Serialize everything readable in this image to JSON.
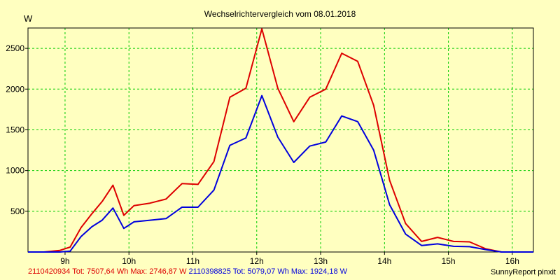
{
  "chart_data": {
    "type": "line",
    "title": "Wechselrichtervergleich vom 08.01.2018",
    "ylabel": "W",
    "xlabel": "",
    "x": [
      8.42,
      8.67,
      8.92,
      9.08,
      9.25,
      9.42,
      9.58,
      9.75,
      9.92,
      10.08,
      10.33,
      10.58,
      10.83,
      11.08,
      11.33,
      11.58,
      11.83,
      12.08,
      12.33,
      12.58,
      12.83,
      13.08,
      13.33,
      13.58,
      13.83,
      14.08,
      14.33,
      14.58,
      14.83,
      15.08,
      15.33,
      15.58,
      15.83,
      16.08,
      16.33
    ],
    "x_ticks": [
      9,
      10,
      11,
      12,
      13,
      14,
      15,
      16
    ],
    "x_tick_labels": [
      "9h",
      "10h",
      "11h",
      "12h",
      "13h",
      "14h",
      "15h",
      "16h"
    ],
    "xlim": [
      8.42,
      16.33
    ],
    "ylim": [
      0,
      2750
    ],
    "y_ticks": [
      500,
      1000,
      1500,
      2000,
      2500
    ],
    "grid": true,
    "series": [
      {
        "name": "2110420934",
        "color": "#dd0000",
        "values": [
          0,
          0,
          20,
          60,
          300,
          470,
          620,
          820,
          450,
          570,
          600,
          650,
          840,
          830,
          1110,
          1900,
          2010,
          2740,
          2010,
          1600,
          1900,
          2000,
          2440,
          2340,
          1800,
          880,
          350,
          130,
          180,
          130,
          125,
          40,
          0,
          0,
          0
        ]
      },
      {
        "name": "2110398825",
        "color": "#0000dd",
        "values": [
          0,
          0,
          0,
          10,
          190,
          310,
          390,
          540,
          290,
          370,
          390,
          410,
          550,
          550,
          760,
          1310,
          1400,
          1920,
          1410,
          1100,
          1300,
          1350,
          1670,
          1600,
          1250,
          580,
          220,
          80,
          100,
          70,
          65,
          30,
          0,
          0,
          0
        ]
      }
    ]
  },
  "footer": {
    "series1_text": "2110420934 Tot: 7507,64 Wh Max: 2746,87 W",
    "series2_text": "2110398825 Tot: 5079,07 Wh Max: 1924,18 W",
    "credit": "SunnyReport pinxit"
  },
  "colors": {
    "background": "#ffffc0",
    "grid": "#00cc00",
    "series1": "#dd0000",
    "series2": "#0000dd"
  }
}
